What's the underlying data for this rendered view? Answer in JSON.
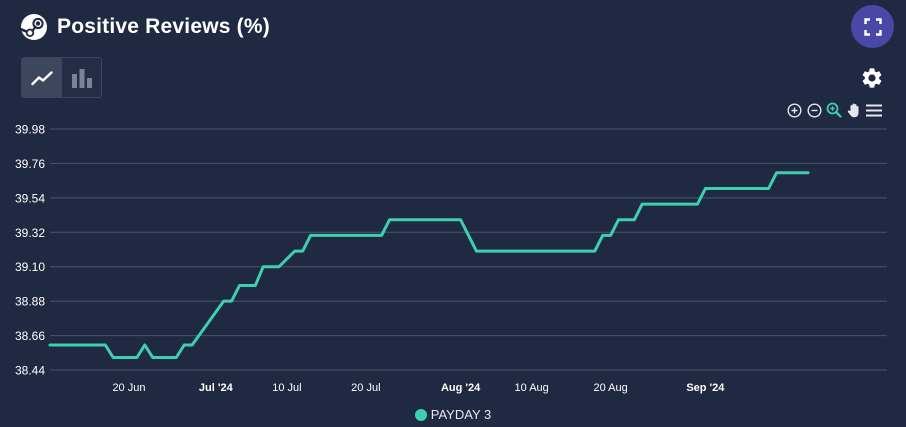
{
  "header": {
    "title": "Positive Reviews (%)"
  },
  "icons": {
    "logo": "steam-logo-icon",
    "expand": "fullscreen-icon",
    "line_toggle": "line-chart-icon",
    "bar_toggle": "bar-chart-icon",
    "settings": "gear-icon",
    "zoom_in": "zoom-in-icon",
    "zoom_out": "zoom-out-icon",
    "selection_zoom": "selection-zoom-icon",
    "pan": "pan-hand-icon",
    "menu": "hamburger-menu-icon"
  },
  "colors": {
    "background": "#1f2942",
    "series": "#3ecfae",
    "accent": "#4a48a6",
    "grid": "#4a5468"
  },
  "chart_data": {
    "type": "line",
    "title": "Positive Reviews (%)",
    "xlabel": "",
    "ylabel": "",
    "grid": true,
    "legend_position": "bottom-center",
    "ylim": [
      38.44,
      39.98
    ],
    "yticks": [
      38.44,
      38.66,
      38.88,
      39.1,
      39.32,
      39.54,
      39.76,
      39.98
    ],
    "ytick_labels": [
      "38.44",
      "38.66",
      "38.88",
      "39.10",
      "39.32",
      "39.54",
      "39.76",
      "39.98"
    ],
    "xlim": [
      "2024-06-10",
      "2024-09-24"
    ],
    "xticks": [
      {
        "date": "2024-06-20",
        "label": "20 Jun",
        "bold": false
      },
      {
        "date": "2024-07-01",
        "label": "Jul '24",
        "bold": true
      },
      {
        "date": "2024-07-10",
        "label": "10 Jul",
        "bold": false
      },
      {
        "date": "2024-07-20",
        "label": "20 Jul",
        "bold": false
      },
      {
        "date": "2024-08-01",
        "label": "Aug '24",
        "bold": true
      },
      {
        "date": "2024-08-10",
        "label": "10 Aug",
        "bold": false
      },
      {
        "date": "2024-08-20",
        "label": "20 Aug",
        "bold": false
      },
      {
        "date": "2024-09-01",
        "label": "Sep '24",
        "bold": true
      }
    ],
    "series": [
      {
        "name": "PAYDAY 3",
        "color": "#3ecfae",
        "x": [
          "2024-06-10",
          "2024-06-17",
          "2024-06-18",
          "2024-06-20",
          "2024-06-21",
          "2024-06-22",
          "2024-06-23",
          "2024-06-26",
          "2024-06-27",
          "2024-06-28",
          "2024-07-02",
          "2024-07-03",
          "2024-07-04",
          "2024-07-06",
          "2024-07-07",
          "2024-07-09",
          "2024-07-11",
          "2024-07-12",
          "2024-07-13",
          "2024-07-15",
          "2024-07-22",
          "2024-07-23",
          "2024-08-01",
          "2024-08-03",
          "2024-08-18",
          "2024-08-19",
          "2024-08-20",
          "2024-08-21",
          "2024-08-23",
          "2024-08-24",
          "2024-08-31",
          "2024-09-01",
          "2024-09-09",
          "2024-09-10",
          "2024-09-13",
          "2024-09-14"
        ],
        "values": [
          38.6,
          38.6,
          38.52,
          38.52,
          38.52,
          38.6,
          38.52,
          38.52,
          38.6,
          38.6,
          38.88,
          38.88,
          38.98,
          38.98,
          39.1,
          39.1,
          39.2,
          39.2,
          39.3,
          39.3,
          39.3,
          39.4,
          39.4,
          39.2,
          39.2,
          39.3,
          39.3,
          39.4,
          39.4,
          39.5,
          39.5,
          39.6,
          39.6,
          39.7,
          39.7,
          39.7
        ]
      }
    ]
  }
}
